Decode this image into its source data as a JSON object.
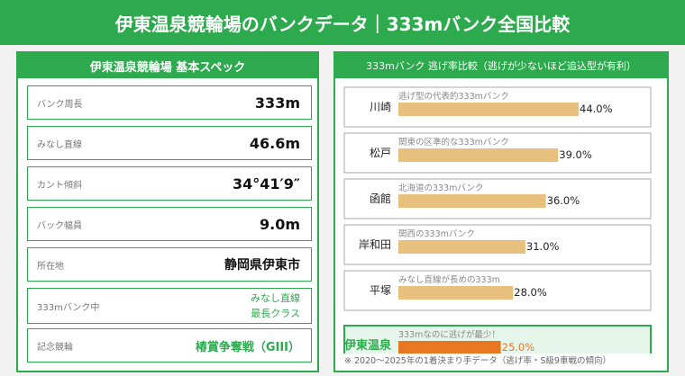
{
  "header": {
    "title": "伊東温泉競輪場のバンクデータ｜333mバンク全国比較"
  },
  "specs": {
    "title": "伊東温泉競輪場 基本スペック",
    "rows": [
      {
        "label": "バンク周長",
        "value": "333m"
      },
      {
        "label": "みなし直線",
        "value": "46.6m"
      },
      {
        "label": "カント傾斜",
        "value": "34°41′9″"
      },
      {
        "label": "バック幅員",
        "value": "9.0m"
      },
      {
        "label": "所在地",
        "value": "静岡県伊東市"
      },
      {
        "label": "333mバンク中",
        "value_line1": "みなし直線",
        "value_line2": "最長クラス"
      },
      {
        "label": "記念競輪",
        "value": "椿賞争奪戦（GIII）"
      }
    ]
  },
  "chart_data": {
    "type": "bar",
    "title": "333mバンク 逃げ率比較（逃げが少ないほど追込型が有利）",
    "categories": [
      "川崎",
      "松戸",
      "函館",
      "岸和田",
      "平塚",
      "伊東温泉"
    ],
    "values": [
      44.0,
      39.0,
      36.0,
      31.0,
      28.0,
      25.0
    ],
    "value_labels": [
      "44.0%",
      "39.0%",
      "36.0%",
      "31.0%",
      "28.0%",
      "25.0%"
    ],
    "annotations": [
      "逃げ型の代表的333mバンク",
      "関東の区準的な333mバンク",
      "北海道の333mバンク",
      "関西の333mバンク",
      "みなし直線が長めの333m",
      "333mなのに逃げが最少！"
    ],
    "highlight_index": 5,
    "colors": {
      "bar": "#e8c07e",
      "highlight_bar": "#e87722",
      "highlight_bg": "#e6f6ea",
      "border": "#2eaa4e"
    },
    "footnote": "※ 2020〜2025年の1着決まり手データ（逃げ率・S級9車戦の傾向）"
  }
}
